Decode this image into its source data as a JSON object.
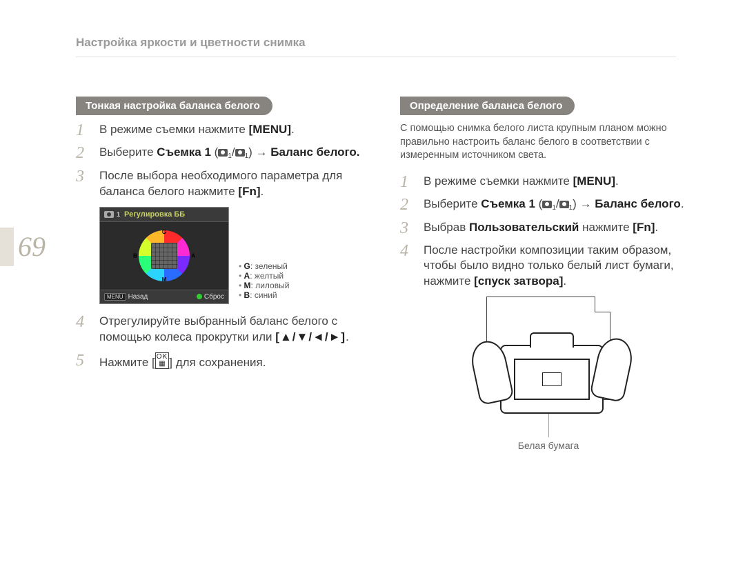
{
  "page_number": "69",
  "page_title": "Настройка яркости и цветности снимка",
  "left": {
    "pill": "Тонкая настройка баланса белого",
    "steps": [
      {
        "n": "1",
        "pre": "В режиме съемки нажмите ",
        "bold": "[MENU]",
        "post": "."
      },
      {
        "n": "2",
        "pre": "Выберите ",
        "bold": "Съемка 1",
        "mid": " (",
        "iconA": "camera",
        "subA": "1",
        "slash": "/",
        "iconB": "video",
        "subB": "1",
        "mid2": ") → ",
        "bold2": "Баланс белого.",
        "post": ""
      },
      {
        "n": "3",
        "pre": "После выбора необходимого параметра для баланса белого нажмите ",
        "bold": "[Fn]",
        "post": "."
      },
      {
        "n": "4",
        "pre": "Отрегулируйте выбранный баланс белого с помощью колеса прокрутки или ",
        "bold": "[▲/▼/◄/►]",
        "post": "."
      },
      {
        "n": "5",
        "pre": "Нажмите [",
        "ok": true,
        "post": "] для сохранения."
      }
    ],
    "lcd": {
      "topIconSub": "1",
      "title": "Регулировка ББ",
      "menu_label": "MENU",
      "back_label": "Назад",
      "reset_label": "Сброс",
      "wheel_labels": {
        "g": "G",
        "b": "B",
        "a": "A",
        "m": "M"
      }
    },
    "legend": [
      {
        "k": "G",
        "v": ": зеленый"
      },
      {
        "k": "A",
        "v": ": желтый"
      },
      {
        "k": "M",
        "v": ": лиловый"
      },
      {
        "k": "B",
        "v": ": синий"
      }
    ]
  },
  "right": {
    "pill": "Определение баланса белого",
    "intro": "С помощью снимка белого листа крупным планом можно правильно настроить баланс белого в соответствии с измеренным источником света.",
    "steps": [
      {
        "n": "1",
        "pre": "В режиме съемки нажмите ",
        "bold": "[MENU]",
        "post": "."
      },
      {
        "n": "2",
        "pre": "Выберите ",
        "bold": "Съемка 1",
        "mid": " (",
        "iconA": "camera",
        "subA": "1",
        "slash": "/",
        "iconB": "video",
        "subB": "1",
        "mid2": ") → ",
        "bold2": "Баланс белого",
        "post": "."
      },
      {
        "n": "3",
        "pre": "Выбрав ",
        "bold": "Пользовательский",
        "mid": " нажмите ",
        "bold2": "[Fn]",
        "post": "."
      },
      {
        "n": "4",
        "pre": "После настройки композиции таким образом, чтобы было видно только белый лист бумаги, нажмите ",
        "bold": "[спуск затвора]",
        "post": "."
      }
    ],
    "caption": "Белая бумага"
  }
}
